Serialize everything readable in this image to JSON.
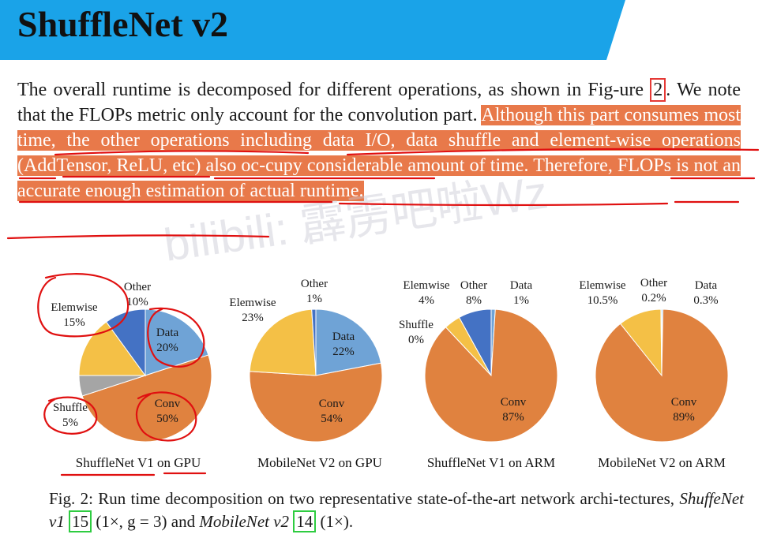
{
  "banner": {
    "title": "ShuffleNet v2",
    "color": "#1aa3e8"
  },
  "paragraph": {
    "part1": "The overall runtime is decomposed for different operations, as shown in Fig-ure ",
    "ref": "2",
    "part2": ". We note that the FLOPs metric only account for the convolution part. ",
    "highlight": "Although this part consumes most time, the other operations including data I/O, data shuffle and element-wise operations (AddTensor, ReLU, etc) also oc-cupy considerable amount of time. Therefore, FLOPs is not an accurate enough estimation of actual runtime."
  },
  "watermark": "bilibili: 霹雳吧啦Wz",
  "colors": {
    "conv": "#e0823f",
    "data": "#6fa3d6",
    "elemwise": "#f4c046",
    "other": "#4472c4",
    "shuffle": "#a5a5a5",
    "highlight": "#e8794a"
  },
  "chart_data": [
    {
      "type": "pie",
      "title": "ShuffleNet V1 on GPU",
      "labels": [
        "Data",
        "Conv",
        "Shuffle",
        "Elemwise",
        "Other"
      ],
      "values": [
        20,
        50,
        5,
        15,
        10
      ],
      "display": [
        "20%",
        "50%",
        "5%",
        "15%",
        "10%"
      ]
    },
    {
      "type": "pie",
      "title": "MobileNet V2 on GPU",
      "labels": [
        "Data",
        "Conv",
        "Elemwise",
        "Other"
      ],
      "values": [
        22,
        54,
        23,
        1
      ],
      "display": [
        "22%",
        "54%",
        "23%",
        "1%"
      ]
    },
    {
      "type": "pie",
      "title": "ShuffleNet V1 on ARM",
      "labels": [
        "Data",
        "Conv",
        "Shuffle",
        "Elemwise",
        "Other"
      ],
      "values": [
        1,
        87,
        0,
        4,
        8
      ],
      "display": [
        "1%",
        "87%",
        "0%",
        "4%",
        "8%"
      ]
    },
    {
      "type": "pie",
      "title": "MobileNet V2 on ARM",
      "labels": [
        "Data",
        "Conv",
        "Elemwise",
        "Other"
      ],
      "values": [
        0.3,
        89,
        10.5,
        0.2
      ],
      "display": [
        "0.3%",
        "89%",
        "10.5%",
        "0.2%"
      ]
    }
  ],
  "caption": {
    "prefix": "Fig. 2: Run time decomposition on two representative state-of-the-art network archi-tectures, ",
    "model1": "ShuffeNet v1",
    "ref1": "15",
    "mid": " (1×, g = 3) and ",
    "model2": "MobileNet v2",
    "ref2": "14",
    "suffix": " (1×)."
  }
}
